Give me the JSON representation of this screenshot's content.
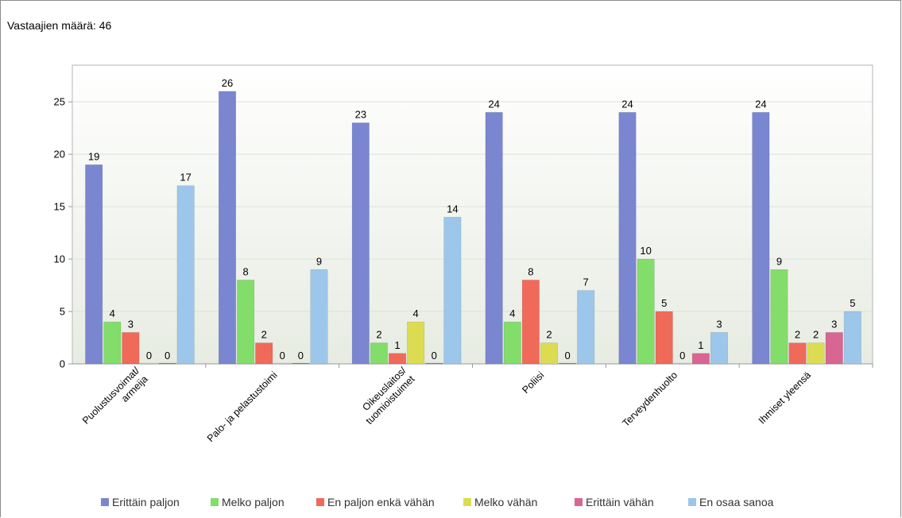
{
  "header": {
    "respondents_text": "Vastaajien määrä: 46"
  },
  "chart_data": {
    "type": "bar",
    "categories": [
      "Puolustusvoimat/ armeija",
      "Palo- ja pelastustoimi",
      "Oikeuslaitos/ tuomioistuimet",
      "Poliisi",
      "Terveydenhuolto",
      "Ihmiset yleensä"
    ],
    "category_lines": [
      [
        "Puolustusvoimat/",
        "armeija"
      ],
      [
        "Palo- ja pelastustoimi"
      ],
      [
        "Oikeuslaitos/",
        "tuomioistuimet"
      ],
      [
        "Poliisi"
      ],
      [
        "Terveydenhuolto"
      ],
      [
        "Ihmiset yleensä"
      ]
    ],
    "series": [
      {
        "name": "Erittäin paljon",
        "color": "#7b86d1",
        "values": [
          19,
          26,
          23,
          24,
          24,
          24
        ]
      },
      {
        "name": "Melko paljon",
        "color": "#82dd6b",
        "values": [
          4,
          8,
          2,
          4,
          10,
          9
        ]
      },
      {
        "name": "En paljon enkä vähän",
        "color": "#f06a5a",
        "values": [
          3,
          2,
          1,
          8,
          5,
          2
        ]
      },
      {
        "name": "Melko vähän",
        "color": "#dcdc52",
        "values": [
          0,
          0,
          4,
          2,
          0,
          2
        ]
      },
      {
        "name": "Erittäin vähän",
        "color": "#d96592",
        "values": [
          0,
          0,
          0,
          0,
          1,
          3
        ]
      },
      {
        "name": "En osaa sanoa",
        "color": "#9cc7ea",
        "values": [
          17,
          9,
          14,
          7,
          3,
          5
        ]
      }
    ],
    "ylim": [
      0,
      28.5
    ],
    "yticks": [
      0,
      5,
      10,
      15,
      20,
      25
    ],
    "grid": true,
    "legend_position": "bottom"
  }
}
